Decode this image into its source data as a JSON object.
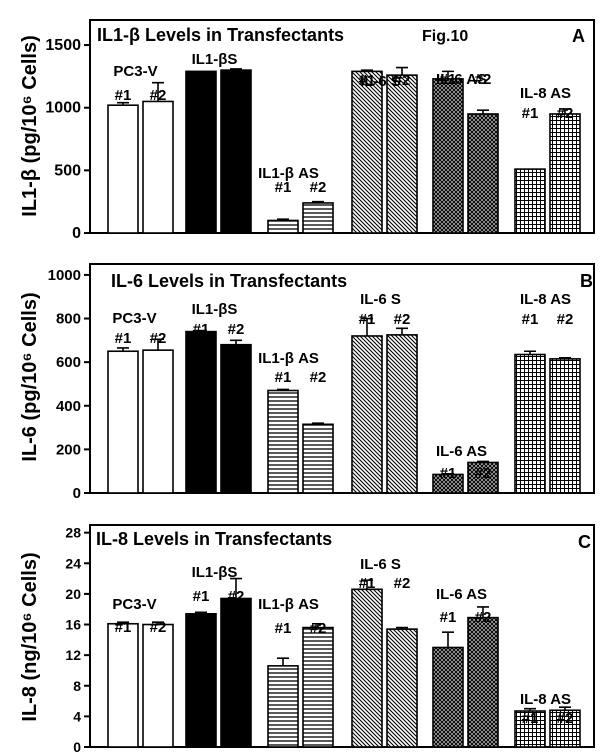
{
  "figure_label": "Fig.10",
  "chart_data": [
    {
      "panel": "A",
      "type": "bar",
      "title": "IL1-β Levels in Transfectants",
      "ylabel": "IL1-β (pg/10⁶ Cells)",
      "ylim": [
        0,
        1700
      ],
      "yticks": [
        0,
        500,
        1000,
        1500
      ],
      "groups": [
        {
          "name": "PC3-V",
          "fill": "open",
          "bars": [
            {
              "label": "#1",
              "value": 1020,
              "error": 20
            },
            {
              "label": "#2",
              "value": 1050,
              "error": 150
            }
          ]
        },
        {
          "name": "IL1-βS",
          "fill": "solid",
          "bars": [
            {
              "label": "#1",
              "value": 1290,
              "error": 0
            },
            {
              "label": "#2",
              "value": 1300,
              "error": 10
            }
          ]
        },
        {
          "name": "IL1-β AS",
          "fill": "horizontal",
          "bars": [
            {
              "label": "#1",
              "value": 100,
              "error": 10
            },
            {
              "label": "#2",
              "value": 240,
              "error": 10
            }
          ]
        },
        {
          "name": "IL-6 S",
          "fill": "diagonal",
          "bars": [
            {
              "label": "#1",
              "value": 1290,
              "error": 10
            },
            {
              "label": "#2",
              "value": 1260,
              "error": 60
            }
          ]
        },
        {
          "name": "IL-6 AS",
          "fill": "crosshatch",
          "bars": [
            {
              "label": "#1",
              "value": 1230,
              "error": 60
            },
            {
              "label": "#2",
              "value": 950,
              "error": 30
            }
          ]
        },
        {
          "name": "IL-8 AS",
          "fill": "grid",
          "bars": [
            {
              "label": "#1",
              "value": 510,
              "error": 0
            },
            {
              "label": "#2",
              "value": 950,
              "error": 40
            }
          ]
        }
      ]
    },
    {
      "panel": "B",
      "type": "bar",
      "title": "IL-6 Levels in Transfectants",
      "ylabel": "IL-6 (pg/10⁶ Cells)",
      "ylim": [
        0,
        1050
      ],
      "yticks": [
        0,
        200,
        400,
        600,
        800,
        1000
      ],
      "groups": [
        {
          "name": "PC3-V",
          "fill": "open",
          "bars": [
            {
              "label": "#1",
              "value": 650,
              "error": 15
            },
            {
              "label": "#2",
              "value": 655,
              "error": 50
            }
          ]
        },
        {
          "name": "IL1-βS",
          "fill": "solid",
          "bars": [
            {
              "label": "#1",
              "value": 740,
              "error": 5
            },
            {
              "label": "#2",
              "value": 680,
              "error": 20
            }
          ]
        },
        {
          "name": "IL1-β AS",
          "fill": "horizontal",
          "bars": [
            {
              "label": "#1",
              "value": 470,
              "error": 5
            },
            {
              "label": "#2",
              "value": 315,
              "error": 5
            }
          ]
        },
        {
          "name": "IL-6 S",
          "fill": "diagonal",
          "bars": [
            {
              "label": "#1",
              "value": 720,
              "error": 80
            },
            {
              "label": "#2",
              "value": 725,
              "error": 30
            }
          ]
        },
        {
          "name": "IL-6 AS",
          "fill": "crosshatch",
          "bars": [
            {
              "label": "#1",
              "value": 85,
              "error": 3
            },
            {
              "label": "#2",
              "value": 140,
              "error": 5
            }
          ]
        },
        {
          "name": "IL-8 AS",
          "fill": "grid",
          "bars": [
            {
              "label": "#1",
              "value": 635,
              "error": 15
            },
            {
              "label": "#2",
              "value": 615,
              "error": 5
            }
          ]
        }
      ]
    },
    {
      "panel": "C",
      "type": "bar",
      "title": "IL-8 Levels in Transfectants",
      "ylabel": "IL-8 (ng/10⁶ Cells)",
      "ylim": [
        0,
        29
      ],
      "yticks": [
        0,
        4,
        8,
        12,
        16,
        20,
        24,
        28
      ],
      "groups": [
        {
          "name": "PC3-V",
          "fill": "open",
          "bars": [
            {
              "label": "#1",
              "value": 16.1,
              "error": 0.2
            },
            {
              "label": "#2",
              "value": 16.0,
              "error": 0.3
            }
          ]
        },
        {
          "name": "IL1-βS",
          "fill": "solid",
          "bars": [
            {
              "label": "#1",
              "value": 17.4,
              "error": 0.2
            },
            {
              "label": "#2",
              "value": 19.4,
              "error": 2.6
            }
          ]
        },
        {
          "name": "IL1-β AS",
          "fill": "horizontal",
          "bars": [
            {
              "label": "#1",
              "value": 10.6,
              "error": 1.0
            },
            {
              "label": "#2",
              "value": 15.6,
              "error": 0.5
            }
          ]
        },
        {
          "name": "IL-6 S",
          "fill": "diagonal",
          "bars": [
            {
              "label": "#1",
              "value": 20.6,
              "error": 1.2
            },
            {
              "label": "#2",
              "value": 15.4,
              "error": 0.2
            }
          ]
        },
        {
          "name": "IL-6 AS",
          "fill": "crosshatch",
          "bars": [
            {
              "label": "#1",
              "value": 13.0,
              "error": 2.0
            },
            {
              "label": "#2",
              "value": 16.9,
              "error": 1.4
            }
          ]
        },
        {
          "name": "IL-8 AS",
          "fill": "grid",
          "bars": [
            {
              "label": "#1",
              "value": 4.7,
              "error": 0.3
            },
            {
              "label": "#2",
              "value": 4.8,
              "error": 0.4
            }
          ]
        }
      ]
    }
  ]
}
